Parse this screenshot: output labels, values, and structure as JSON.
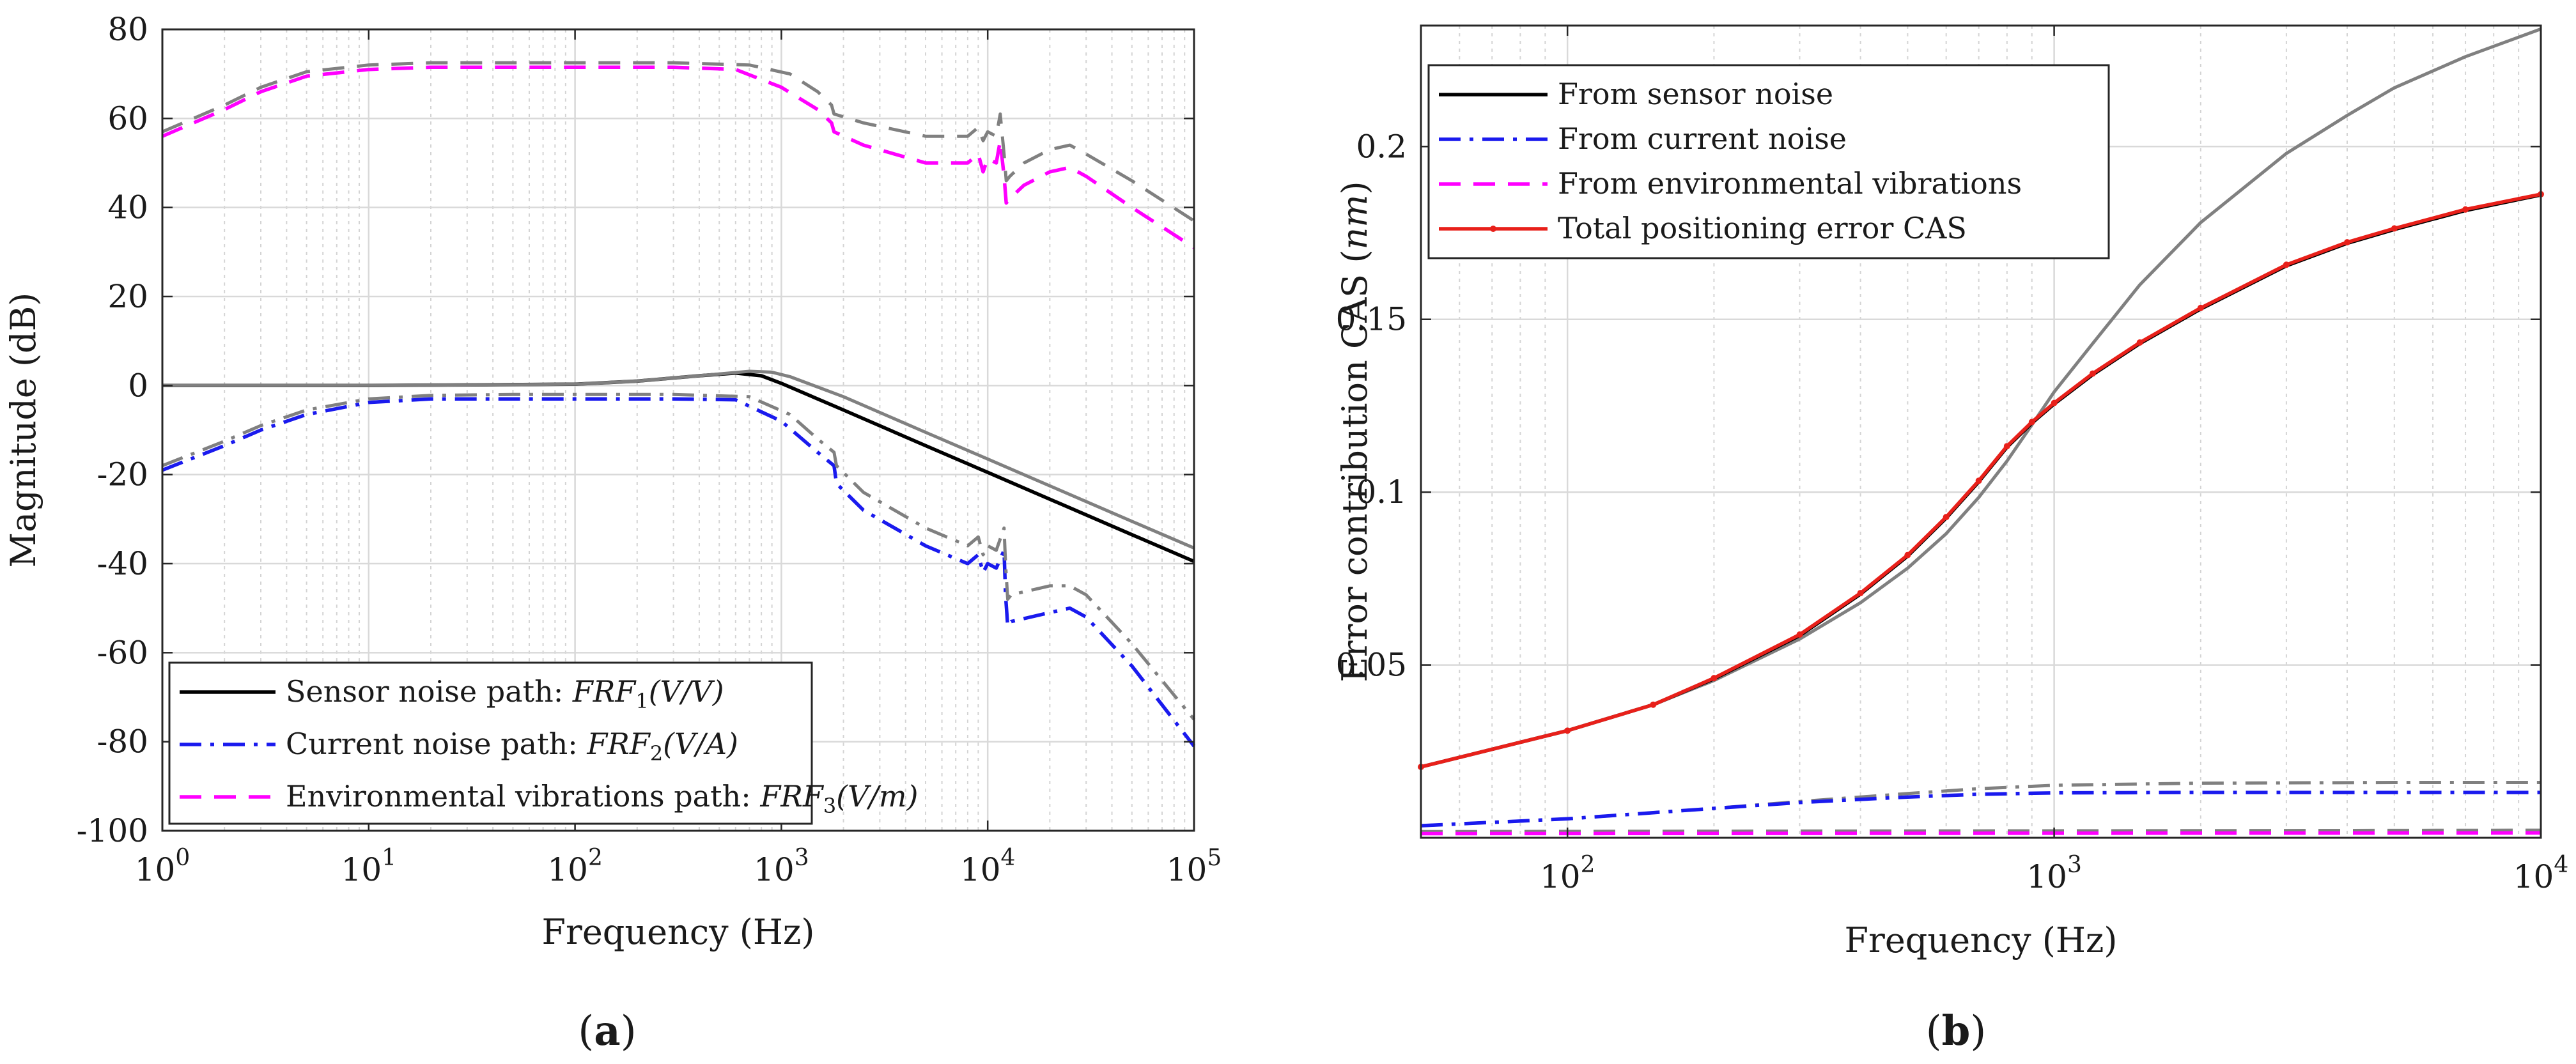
{
  "chart_data": [
    {
      "id": "a",
      "type": "line",
      "caption": "a",
      "xlabel": "Frequency (Hz)",
      "ylabel": "Magnitude (dB)",
      "xscale": "log",
      "xlim": [
        1,
        100000
      ],
      "ylim": [
        -100,
        80
      ],
      "yticks": [
        -100,
        -80,
        -60,
        -40,
        -20,
        0,
        20,
        40,
        60,
        80
      ],
      "ytick_labels": [
        "-100",
        "-80",
        "-60",
        "-40",
        "-20",
        "0",
        "20",
        "40",
        "60",
        "80"
      ],
      "xticks": [
        1,
        10,
        100,
        1000,
        10000,
        100000
      ],
      "xtick_labels": [
        {
          "base": "10",
          "exp": "0"
        },
        {
          "base": "10",
          "exp": "1"
        },
        {
          "base": "10",
          "exp": "2"
        },
        {
          "base": "10",
          "exp": "3"
        },
        {
          "base": "10",
          "exp": "4"
        },
        {
          "base": "10",
          "exp": "5"
        }
      ],
      "grid": true,
      "legend_position": "bottom-left",
      "legend": [
        {
          "series": "sensor",
          "text": "Sensor noise path: ",
          "math": "FRF",
          "sub": "1",
          "unit": "(V/V)"
        },
        {
          "series": "current",
          "text": "Current noise path: ",
          "math": "FRF",
          "sub": "2",
          "unit": "(V/A)"
        },
        {
          "series": "env",
          "text": "Environmental vibrations path: ",
          "math": "FRF",
          "sub": "3",
          "unit": "(V/m)"
        }
      ],
      "series": [
        {
          "name": "sensor",
          "color": "#000000",
          "style": "solid",
          "x": [
            1,
            10,
            100,
            200,
            400,
            600,
            800,
            1000,
            2000,
            5000,
            10000,
            50000,
            100000
          ],
          "y": [
            0,
            0,
            0.3,
            1.0,
            2.2,
            2.8,
            2.2,
            0.5,
            -5.5,
            -13.5,
            -19.5,
            -33.5,
            -39.5
          ]
        },
        {
          "name": "sensor_ref",
          "color": "#808080",
          "style": "solid",
          "x": [
            1,
            10,
            100,
            200,
            400,
            700,
            900,
            1100,
            2000,
            5000,
            10000,
            50000,
            100000
          ],
          "y": [
            0,
            0,
            0.3,
            1.0,
            2.2,
            3.2,
            3.0,
            2.0,
            -2.5,
            -10.5,
            -16.5,
            -30.5,
            -36.5
          ]
        },
        {
          "name": "current",
          "color": "#1a1aee",
          "style": "dashdot",
          "x": [
            1,
            2,
            3,
            5,
            10,
            20,
            50,
            100,
            300,
            600,
            1000,
            1500,
            1800,
            1850,
            2500,
            5000,
            8000,
            9000,
            9500,
            10000,
            11000,
            12000,
            12200,
            12500,
            13000,
            20000,
            25000,
            30000,
            50000,
            100000
          ],
          "y": [
            -19,
            -13.5,
            -10,
            -6.5,
            -3.8,
            -3,
            -3,
            -3,
            -3,
            -3.2,
            -8,
            -15,
            -18,
            -22,
            -28,
            -36,
            -40,
            -38,
            -42,
            -40,
            -41,
            -37,
            -47,
            -54,
            -53,
            -51,
            -50,
            -52,
            -63,
            -81
          ]
        },
        {
          "name": "current_ref",
          "color": "#808080",
          "style": "dashdot",
          "x": [
            1,
            2,
            3,
            5,
            10,
            20,
            50,
            100,
            300,
            700,
            1100,
            1500,
            1800,
            1850,
            2500,
            5000,
            8000,
            9000,
            9500,
            10000,
            11000,
            12000,
            12200,
            12500,
            13000,
            20000,
            25000,
            30000,
            50000,
            100000
          ],
          "y": [
            -18,
            -12.5,
            -9,
            -5.5,
            -3,
            -2.2,
            -2,
            -2,
            -2,
            -2.5,
            -6.5,
            -12,
            -15,
            -18,
            -24,
            -32,
            -36,
            -34,
            -38,
            -36,
            -37,
            -32,
            -40,
            -48,
            -47,
            -45,
            -45,
            -47,
            -58,
            -75
          ]
        },
        {
          "name": "env",
          "color": "#ff00ff",
          "style": "dashed",
          "x": [
            1,
            2,
            3,
            5,
            10,
            20,
            50,
            100,
            300,
            600,
            1000,
            1500,
            1750,
            1800,
            2500,
            5000,
            8000,
            9000,
            9500,
            10000,
            11000,
            11500,
            12000,
            12300,
            12800,
            15000,
            20000,
            25000,
            30000,
            50000,
            100000
          ],
          "y": [
            56,
            62,
            66,
            69.5,
            71,
            71.5,
            71.5,
            71.5,
            71.5,
            71,
            67,
            62,
            59,
            57,
            54,
            50,
            50,
            52,
            48,
            51,
            50,
            55,
            47,
            41,
            42,
            45,
            48,
            49,
            47,
            40,
            31
          ]
        },
        {
          "name": "env_ref",
          "color": "#808080",
          "style": "dashed",
          "x": [
            1,
            2,
            3,
            5,
            10,
            20,
            50,
            100,
            300,
            700,
            1100,
            1500,
            1750,
            1800,
            2500,
            5000,
            8000,
            9000,
            9500,
            10000,
            11000,
            11500,
            12000,
            12300,
            12800,
            15000,
            20000,
            25000,
            30000,
            50000,
            100000
          ],
          "y": [
            57,
            63,
            67,
            70.5,
            72,
            72.5,
            72.5,
            72.5,
            72.5,
            72,
            70,
            66,
            63,
            61,
            59,
            56,
            56,
            58,
            55,
            57,
            56,
            61,
            52,
            46,
            47,
            50,
            53,
            54,
            52,
            46,
            37
          ]
        }
      ]
    },
    {
      "id": "b",
      "type": "line",
      "caption": "b",
      "xlabel": "Frequency (Hz)",
      "ylabel": "Error contribution CAS (",
      "ylabel_math": "nm",
      "ylabel_close": ")",
      "xscale": "log",
      "xlim": [
        50,
        10000
      ],
      "ylim": [
        0.0,
        0.235
      ],
      "yticks": [
        0.05,
        0.1,
        0.15,
        0.2
      ],
      "ytick_labels": [
        "0.05",
        "0.1",
        "0.15",
        "0.2"
      ],
      "xticks": [
        100,
        1000,
        10000
      ],
      "xtick_labels": [
        {
          "base": "10",
          "exp": "2"
        },
        {
          "base": "10",
          "exp": "3"
        },
        {
          "base": "10",
          "exp": "4"
        }
      ],
      "grid": true,
      "legend_position": "top-left",
      "legend": [
        {
          "series": "sensor",
          "text": "From sensor noise"
        },
        {
          "series": "current",
          "text": "From current noise"
        },
        {
          "series": "env",
          "text": "From environmental vibrations"
        },
        {
          "series": "total",
          "text": "Total positioning error CAS"
        }
      ],
      "series": [
        {
          "name": "sensor_ref",
          "color": "#808080",
          "style": "solid",
          "x": [
            50,
            100,
            150,
            200,
            300,
            400,
            500,
            600,
            700,
            800,
            900,
            1000,
            1200,
            1500,
            2000,
            3000,
            4000,
            5000,
            7000,
            10000
          ],
          "y": [
            0.0205,
            0.031,
            0.0385,
            0.0455,
            0.0575,
            0.068,
            0.078,
            0.088,
            0.0985,
            0.109,
            0.1195,
            0.129,
            0.143,
            0.16,
            0.178,
            0.198,
            0.209,
            0.217,
            0.226,
            0.234
          ]
        },
        {
          "name": "sensor",
          "color": "#000000",
          "style": "solid",
          "x": [
            50,
            100,
            150,
            200,
            300,
            400,
            500,
            600,
            700,
            800,
            900,
            1000,
            1200,
            1500,
            2000,
            3000,
            4000,
            5000,
            7000,
            10000
          ],
          "y": [
            0.0205,
            0.031,
            0.0385,
            0.046,
            0.0585,
            0.0705,
            0.0815,
            0.0925,
            0.103,
            0.113,
            0.12,
            0.1255,
            0.134,
            0.143,
            0.153,
            0.1655,
            0.172,
            0.176,
            0.1815,
            0.186
          ]
        },
        {
          "name": "current_ref",
          "color": "#808080",
          "style": "dashdot",
          "x": [
            50,
            100,
            200,
            300,
            500,
            700,
            1000,
            2000,
            5000,
            10000
          ],
          "y": [
            0.0035,
            0.0055,
            0.0085,
            0.0105,
            0.0128,
            0.0142,
            0.0152,
            0.0158,
            0.016,
            0.016
          ]
        },
        {
          "name": "current",
          "color": "#1a1aee",
          "style": "dashdot",
          "x": [
            50,
            100,
            200,
            300,
            500,
            700,
            1000,
            2000,
            5000,
            10000
          ],
          "y": [
            0.0035,
            0.0055,
            0.0085,
            0.0102,
            0.0118,
            0.0126,
            0.013,
            0.0131,
            0.0131,
            0.0131
          ]
        },
        {
          "name": "env_ref",
          "color": "#808080",
          "style": "dashed",
          "x": [
            50,
            10000
          ],
          "y": [
            0.0018,
            0.0022
          ]
        },
        {
          "name": "env",
          "color": "#ff00ff",
          "style": "dashed",
          "x": [
            50,
            10000
          ],
          "y": [
            0.0012,
            0.0014
          ]
        },
        {
          "name": "total",
          "color": "#e8201a",
          "style": "solid-dots",
          "x": [
            50,
            100,
            150,
            200,
            300,
            400,
            500,
            600,
            700,
            800,
            900,
            1000,
            1200,
            1500,
            2000,
            3000,
            4000,
            5000,
            7000,
            10000
          ],
          "y": [
            0.0205,
            0.031,
            0.0385,
            0.0462,
            0.0588,
            0.0708,
            0.0818,
            0.0928,
            0.1033,
            0.1133,
            0.1203,
            0.1258,
            0.1343,
            0.1433,
            0.1533,
            0.1658,
            0.1723,
            0.1763,
            0.1818,
            0.1862
          ]
        }
      ]
    }
  ]
}
